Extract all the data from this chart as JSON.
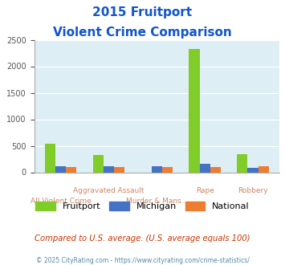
{
  "title_line1": "2015 Fruitport",
  "title_line2": "Violent Crime Comparison",
  "categories": [
    "All Violent Crime",
    "Aggravated Assault",
    "Murder & Mans...",
    "Rape",
    "Robbery"
  ],
  "row1_labels": [
    "",
    "Aggravated Assault",
    "",
    "Rape",
    "Robbery"
  ],
  "row2_labels": [
    "All Violent Crime",
    "",
    "Murder & Mans...",
    "",
    ""
  ],
  "fruitport": [
    540,
    330,
    0,
    2320,
    340
  ],
  "michigan": [
    115,
    115,
    115,
    160,
    80
  ],
  "national": [
    105,
    105,
    105,
    105,
    115
  ],
  "colors": {
    "fruitport": "#80cc28",
    "michigan": "#4472c4",
    "national": "#ed7d31"
  },
  "ylim": [
    0,
    2500
  ],
  "yticks": [
    0,
    500,
    1000,
    1500,
    2000,
    2500
  ],
  "bg_color": "#deeef5",
  "title_color": "#1155cc",
  "xlabel_color": "#cc8866",
  "legend_text_color": "#333333",
  "footer_text": "Compared to U.S. average. (U.S. average equals 100)",
  "copyright_text": "© 2025 CityRating.com - https://www.cityrating.com/crime-statistics/",
  "footer_color": "#cc3300",
  "copyright_color": "#5588aa"
}
